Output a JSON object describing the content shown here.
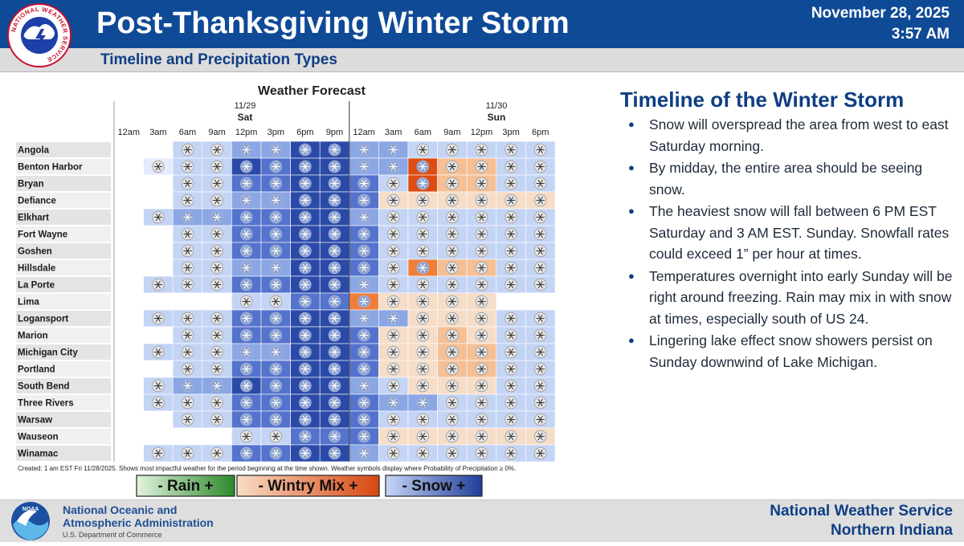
{
  "header": {
    "title": "Post-Thanksgiving Winter Storm",
    "subtitle": "Timeline and Precipitation Types",
    "date": "November 28, 2025",
    "time": "3:57 AM",
    "logo_text": "NATIONAL WEATHER SERVICE"
  },
  "forecast": {
    "title": "Weather Forecast",
    "days": [
      {
        "date": "11/29",
        "day": "Sat"
      },
      {
        "date": "11/30",
        "day": "Sun"
      }
    ],
    "hours": [
      "12am",
      "3am",
      "6am",
      "9am",
      "12pm",
      "3pm",
      "6pm",
      "9pm",
      "12am",
      "3am",
      "6am",
      "9am",
      "12pm",
      "3pm",
      "6pm"
    ],
    "locations": [
      "Angola",
      "Benton Harbor",
      "Bryan",
      "Defiance",
      "Elkhart",
      "Fort Wayne",
      "Goshen",
      "Hillsdale",
      "La Porte",
      "Lima",
      "Logansport",
      "Marion",
      "Michigan City",
      "Portland",
      "South Bend",
      "Three Rivers",
      "Warsaw",
      "Wauseon",
      "Winamac"
    ],
    "note": "Created: 1 am EST Fri 11/28/2025. Shows most impactful weather for the period beginning at the time shown. Weather symbols display where Probability of Precipitation ≥ 0%.",
    "legend": [
      {
        "label": "- Rain +",
        "from": "#e3f3df",
        "to": "#2c8a2c"
      },
      {
        "label": "- Wintry Mix +",
        "from": "#f8ddc6",
        "to": "#d8460f"
      },
      {
        "label": "- Snow +",
        "from": "#c6d6f6",
        "to": "#1f3e9a"
      }
    ],
    "grid": {
      "colors": {
        "n": "#ffffff",
        "s0": "#e3ebfc",
        "s1": "#c4d4f5",
        "s2": "#8ba6e4",
        "s3": "#5473cc",
        "s4": "#2b4aa8",
        "m1": "#f5ddc8",
        "m2": "#f5bf95",
        "m3": "#ee7f3b",
        "m4": "#dd4c12"
      },
      "rows": [
        [
          "n",
          "n",
          "s1",
          "s1",
          "s2",
          "s2",
          "s4",
          "s4",
          "s2",
          "s2",
          "s1",
          "s1",
          "s1",
          "s1",
          "s1"
        ],
        [
          "n",
          "s0",
          "s1",
          "s1",
          "s4",
          "s3",
          "s4",
          "s4",
          "s2",
          "s2",
          "m4",
          "m2",
          "m2",
          "s1",
          "s1"
        ],
        [
          "n",
          "n",
          "s1",
          "s1",
          "s3",
          "s3",
          "s4",
          "s4",
          "s3",
          "s1",
          "m4",
          "m2",
          "m2",
          "s1",
          "s1"
        ],
        [
          "n",
          "n",
          "s1",
          "s1",
          "s2",
          "s2",
          "s4",
          "s4",
          "s3",
          "m1",
          "m1",
          "m1",
          "m1",
          "m1",
          "m1"
        ],
        [
          "n",
          "s1",
          "s2",
          "s2",
          "s3",
          "s3",
          "s4",
          "s4",
          "s2",
          "s1",
          "s1",
          "s1",
          "s1",
          "s1",
          "s1"
        ],
        [
          "n",
          "n",
          "s1",
          "s1",
          "s3",
          "s3",
          "s4",
          "s4",
          "s3",
          "s1",
          "s1",
          "s1",
          "s1",
          "s1",
          "s1"
        ],
        [
          "n",
          "n",
          "s1",
          "s1",
          "s3",
          "s3",
          "s4",
          "s4",
          "s3",
          "s1",
          "s1",
          "s1",
          "s1",
          "s1",
          "s1"
        ],
        [
          "n",
          "n",
          "s1",
          "s1",
          "s2",
          "s2",
          "s4",
          "s4",
          "s3",
          "s1",
          "m3",
          "m2",
          "m2",
          "s1",
          "s1"
        ],
        [
          "n",
          "s1",
          "s1",
          "s1",
          "s3",
          "s3",
          "s4",
          "s4",
          "s2",
          "s1",
          "s1",
          "s1",
          "s1",
          "s1",
          "s1"
        ],
        [
          "n",
          "n",
          "n",
          "n",
          "s1",
          "s1",
          "s3",
          "s3",
          "m3",
          "m1",
          "m1",
          "m1",
          "m1",
          "n",
          "n"
        ],
        [
          "n",
          "s1",
          "s1",
          "s1",
          "s3",
          "s3",
          "s4",
          "s4",
          "s2",
          "s2",
          "m1",
          "m1",
          "m1",
          "s1",
          "s1"
        ],
        [
          "n",
          "n",
          "s1",
          "s1",
          "s3",
          "s3",
          "s4",
          "s4",
          "s3",
          "m1",
          "m1",
          "m2",
          "m1",
          "s1",
          "s1"
        ],
        [
          "n",
          "s1",
          "s1",
          "s1",
          "s2",
          "s2",
          "s4",
          "s4",
          "s3",
          "m1",
          "m1",
          "m2",
          "m2",
          "s1",
          "s1"
        ],
        [
          "n",
          "n",
          "s1",
          "s1",
          "s3",
          "s3",
          "s4",
          "s4",
          "s3",
          "m1",
          "m1",
          "m2",
          "m2",
          "s1",
          "s1"
        ],
        [
          "n",
          "s1",
          "s2",
          "s2",
          "s4",
          "s3",
          "s4",
          "s4",
          "s2",
          "s1",
          "m1",
          "m1",
          "m1",
          "s1",
          "s1"
        ],
        [
          "n",
          "s1",
          "s1",
          "s1",
          "s3",
          "s3",
          "s4",
          "s4",
          "s3",
          "s2",
          "s2",
          "s1",
          "s1",
          "s1",
          "s1"
        ],
        [
          "n",
          "n",
          "s1",
          "s1",
          "s3",
          "s3",
          "s4",
          "s4",
          "s3",
          "s1",
          "s1",
          "s1",
          "s1",
          "s1",
          "s1"
        ],
        [
          "n",
          "n",
          "n",
          "n",
          "s1",
          "s1",
          "s3",
          "s3",
          "s3",
          "m1",
          "m1",
          "m1",
          "m1",
          "m1",
          "m1"
        ],
        [
          "n",
          "s1",
          "s1",
          "s1",
          "s3",
          "s3",
          "s4",
          "s4",
          "s2",
          "s1",
          "s1",
          "s1",
          "s1",
          "s1",
          "s1"
        ]
      ]
    }
  },
  "timeline": {
    "title": "Timeline of the Winter Storm",
    "bullets": [
      "Snow will overspread the area from west to east Saturday morning.",
      "By midday, the entire area should be seeing snow.",
      "The heaviest snow will fall between 6 PM EST Saturday and 3 AM EST. Sunday. Snowfall rates could exceed 1” per hour at times.",
      "Temperatures overnight into early Sunday will be right around freezing. Rain may mix in with snow at times, especially south of US 24.",
      "Lingering lake effect snow showers persist on Sunday downwind of Lake Michigan."
    ]
  },
  "footer": {
    "noaa_line1": "National Oceanic and",
    "noaa_line2": "Atmospheric Administration",
    "noaa_dept": "U.S. Department of Commerce",
    "nws_line1": "National Weather Service",
    "nws_line2": "Northern Indiana"
  },
  "colors": {
    "brand_blue": "#0f4a96",
    "nws_red": "#c8102e"
  }
}
